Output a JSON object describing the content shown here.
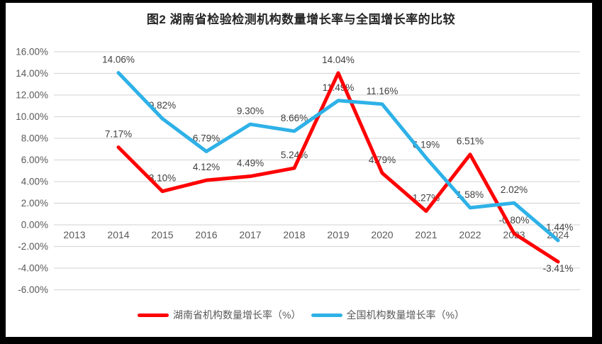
{
  "title": "图2 湖南省检验检测机构数量增长率与全国增长率的比较",
  "chart_data": {
    "type": "line",
    "categories": [
      "2013",
      "2014",
      "2015",
      "2016",
      "2017",
      "2018",
      "2019",
      "2020",
      "2021",
      "2022",
      "2023",
      "2024"
    ],
    "series": [
      {
        "name": "湖南省机构数量增长率（%）",
        "color": "#FF0000",
        "values": [
          null,
          7.17,
          3.1,
          4.12,
          4.49,
          5.24,
          14.04,
          4.79,
          1.27,
          6.51,
          -0.8,
          -3.41
        ],
        "labels": [
          null,
          "7.17%",
          "3.10%",
          "4.12%",
          "4.49%",
          "5.24%",
          "14.04%",
          "4.79%",
          "1.27%",
          "6.51%",
          "-0.80%",
          "-3.41%"
        ]
      },
      {
        "name": "全国机构数量增长率（%）",
        "color": "#2EB1E7",
        "values": [
          null,
          14.06,
          9.82,
          6.79,
          9.3,
          8.66,
          11.49,
          11.16,
          6.19,
          1.58,
          2.02,
          -1.44
        ],
        "labels": [
          null,
          "14.06%",
          "9.82%",
          "6.79%",
          "9.30%",
          "8.66%",
          "11.49%",
          "11.16%",
          "6.19%",
          "1.58%",
          "2.02%",
          "-1.44%"
        ]
      }
    ],
    "yticks": [
      {
        "value": 16,
        "label": "16.00%"
      },
      {
        "value": 14,
        "label": "14.00%"
      },
      {
        "value": 12,
        "label": "12.00%"
      },
      {
        "value": 10,
        "label": "10.00%"
      },
      {
        "value": 8,
        "label": "8.00%"
      },
      {
        "value": 6,
        "label": "6.00%"
      },
      {
        "value": 4,
        "label": "4.00%"
      },
      {
        "value": 2,
        "label": "2.00%"
      },
      {
        "value": 0,
        "label": "0.00%"
      },
      {
        "value": -2,
        "label": "-2.00%"
      },
      {
        "value": -4,
        "label": "-4.00%"
      },
      {
        "value": -6,
        "label": "-6.00%"
      }
    ],
    "ylim": [
      -6,
      16
    ],
    "grid": true,
    "legend_position": "bottom",
    "colors": {
      "grid": "#D9D9D9",
      "axis_labels": "#595959",
      "data_labels": "#404040",
      "title": "#262626",
      "frame": "#000000",
      "plot_background": "#FFFFFF"
    }
  }
}
